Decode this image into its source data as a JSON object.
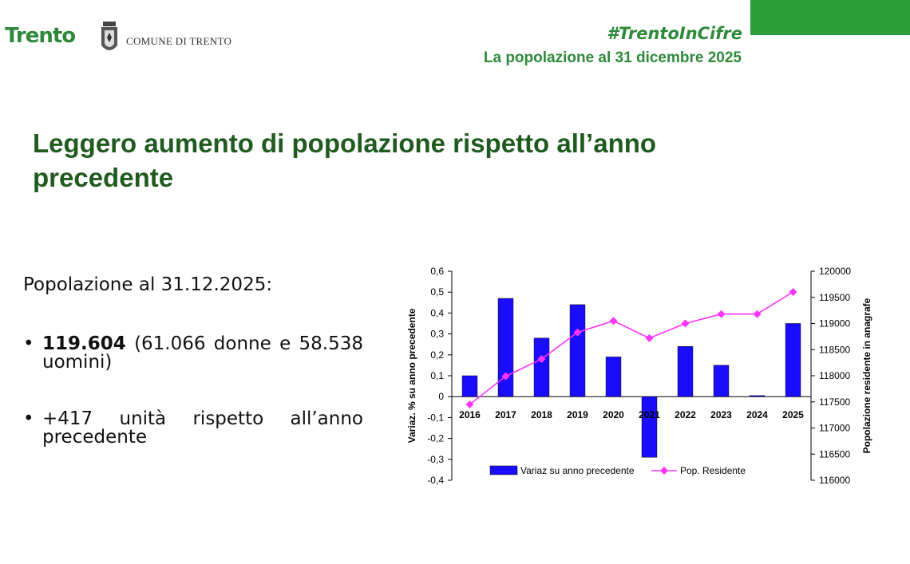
{
  "header": {
    "logo_text": "Trento",
    "comune": "COMUNE DI TRENTO",
    "hashtag": "#TrentoInCifre",
    "subtitle": "La popolazione al 31 dicembre 2025"
  },
  "title": "Leggero aumento di popolazione rispetto all’anno precedente",
  "summary": {
    "label": "Popolazione al 31.12.2025:",
    "bullet_1_value": "119.604",
    "bullet_1_detail": "(61.066 donne e 58.538 uomini)",
    "bullet_2": "+417 unità rispetto all’anno precedente"
  },
  "colors": {
    "accent": "#2e9e3a",
    "title": "#1f5b1f",
    "bar": "#1a0dff",
    "line": "#ff33ff"
  },
  "chart_data": {
    "type": "bar",
    "categories": [
      "2016",
      "2017",
      "2018",
      "2019",
      "2020",
      "2021",
      "2022",
      "2023",
      "2024",
      "2025"
    ],
    "series": [
      {
        "name": "Variaz su anno precedente",
        "type": "bar",
        "axis": "left",
        "values": [
          0.1,
          0.47,
          0.28,
          0.44,
          0.19,
          -0.29,
          0.24,
          0.15,
          0.005,
          0.35
        ]
      },
      {
        "name": "Pop. Residente",
        "type": "line",
        "axis": "right",
        "values": [
          117450,
          117990,
          118320,
          118830,
          119050,
          118720,
          119000,
          119180,
          119180,
          119604
        ]
      }
    ],
    "ylabel": "Variaz. % su anno precedente",
    "y2label": "Popolazione residente in anagrafe",
    "ylim": [
      -0.4,
      0.6
    ],
    "y2lim": [
      116000,
      120000
    ],
    "yticks": [
      "0,6",
      "0,5",
      "0,4",
      "0,3",
      "0,2",
      "0,1",
      "0",
      "-0,1",
      "-0,2",
      "-0,3",
      "-0,4"
    ],
    "y2ticks": [
      "120000",
      "119500",
      "119000",
      "118500",
      "118000",
      "117500",
      "117000",
      "116500",
      "116000"
    ],
    "legend_position": "bottom",
    "grid": false
  }
}
